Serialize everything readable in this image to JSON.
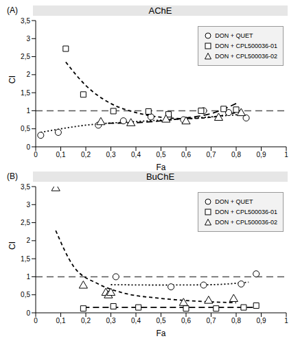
{
  "chart_data": [
    {
      "type": "scatter",
      "title": "AChE",
      "label": "(A)",
      "x_label": "Fa",
      "y_label": "CI",
      "xlim": [
        0,
        1
      ],
      "ylim": [
        0,
        3.5
      ],
      "xticks": [
        0,
        {
          "value": 0.1,
          "label": "0,1"
        },
        {
          "value": 0.2,
          "label": "0,2"
        },
        {
          "value": 0.3,
          "label": "0,3"
        },
        {
          "value": 0.4,
          "label": "0,4"
        },
        {
          "value": 0.5,
          "label": "0,5"
        },
        {
          "value": 0.6,
          "label": "0,6"
        },
        {
          "value": 0.7,
          "label": "0,7"
        },
        {
          "value": 0.8,
          "label": "0,8"
        },
        {
          "value": 0.9,
          "label": "0,9"
        },
        1
      ],
      "yticks": [
        0,
        {
          "value": 0.5,
          "label": "0,5"
        },
        1,
        {
          "value": 1.5,
          "label": "1,5"
        },
        2,
        {
          "value": 2.5,
          "label": "2,5"
        },
        3,
        {
          "value": 3.5,
          "label": "3,5"
        }
      ],
      "reference_line": 1,
      "legend": "upper right",
      "series": [
        {
          "name": "DON + QUET",
          "color": "#000000",
          "marker": "circle",
          "line_style": "dotted",
          "x": [
            0.02,
            0.09,
            0.25,
            0.35,
            0.46,
            0.53,
            0.59,
            0.67,
            0.77,
            0.84
          ],
          "values": [
            0.32,
            0.4,
            0.6,
            0.72,
            0.83,
            0.84,
            0.75,
            1.0,
            0.95,
            0.8
          ],
          "trend": {
            "x": [
              0.02,
              0.2,
              0.4,
              0.6,
              0.82
            ],
            "values": [
              0.4,
              0.6,
              0.7,
              0.78,
              0.9
            ]
          }
        },
        {
          "name": "DON + CPL500036-01",
          "color": "#000000",
          "marker": "square",
          "line_style": "dashed",
          "x": [
            0.12,
            0.19,
            0.31,
            0.45,
            0.53,
            0.66,
            0.75,
            0.8
          ],
          "values": [
            2.72,
            1.45,
            0.99,
            0.98,
            0.9,
            1.0,
            1.05,
            1.03
          ],
          "trend": {
            "x": [
              0.12,
              0.2,
              0.3,
              0.4,
              0.5,
              0.6,
              0.7,
              0.8
            ],
            "values": [
              2.35,
              1.7,
              1.2,
              0.95,
              0.82,
              0.78,
              0.82,
              0.95
            ]
          }
        },
        {
          "name": "DON + CPL500036-02",
          "color": "#000000",
          "marker": "triangle",
          "line_style": "long_dashed",
          "x": [
            0.26,
            0.38,
            0.52,
            0.6,
            0.73,
            0.82
          ],
          "values": [
            0.68,
            0.65,
            0.75,
            0.7,
            0.8,
            0.93
          ],
          "trend": {
            "x": [
              0.25,
              0.4,
              0.5,
              0.6,
              0.7,
              0.8
            ],
            "values": [
              0.65,
              0.67,
              0.72,
              0.8,
              0.92,
              1.2
            ]
          }
        }
      ]
    },
    {
      "type": "scatter",
      "title": "BuChE",
      "label": "(B)",
      "x_label": "Fa",
      "y_label": "CI",
      "xlim": [
        0,
        1
      ],
      "ylim": [
        0,
        3.5
      ],
      "xticks": [
        0,
        {
          "value": 0.1,
          "label": "0,1"
        },
        {
          "value": 0.2,
          "label": "0,2"
        },
        {
          "value": 0.3,
          "label": "0,3"
        },
        {
          "value": 0.4,
          "label": "0,4"
        },
        {
          "value": 0.5,
          "label": "0,5"
        },
        {
          "value": 0.6,
          "label": "0,6"
        },
        {
          "value": 0.7,
          "label": "0,7"
        },
        {
          "value": 0.8,
          "label": "0,8"
        },
        {
          "value": 0.9,
          "label": "0,9"
        },
        1
      ],
      "yticks": [
        0,
        {
          "value": 0.5,
          "label": "0,5"
        },
        1,
        {
          "value": 1.5,
          "label": "1,5"
        },
        2,
        {
          "value": 2.5,
          "label": "2,5"
        },
        3,
        {
          "value": 3.5,
          "label": "3,5"
        }
      ],
      "reference_line": 1,
      "legend": "upper right",
      "series": [
        {
          "name": "DON + QUET",
          "color": "#000000",
          "marker": "circle",
          "line_style": "dotted",
          "x": [
            0.32,
            0.54,
            0.67,
            0.82,
            0.88
          ],
          "values": [
            1.0,
            0.72,
            0.77,
            0.8,
            1.08
          ],
          "trend": {
            "x": [
              0.3,
              0.5,
              0.7,
              0.85
            ],
            "values": [
              0.78,
              0.77,
              0.78,
              0.85
            ]
          }
        },
        {
          "name": "DON + CPL500036-01",
          "color": "#000000",
          "marker": "square",
          "line_style": "long_dashed",
          "x": [
            0.19,
            0.31,
            0.41,
            0.6,
            0.72,
            0.83,
            0.88
          ],
          "values": [
            0.12,
            0.18,
            0.15,
            0.12,
            0.12,
            0.15,
            0.2
          ],
          "trend": {
            "x": [
              0.19,
              0.5,
              0.88
            ],
            "values": [
              0.15,
              0.15,
              0.15
            ]
          }
        },
        {
          "name": "DON + CPL500036-02",
          "color": "#000000",
          "marker": "triangle",
          "line_style": "dashed",
          "x": [
            0.08,
            0.19,
            0.28,
            0.29,
            0.3,
            0.59,
            0.69,
            0.79
          ],
          "values": [
            3.45,
            0.75,
            0.55,
            0.48,
            0.55,
            0.27,
            0.33,
            0.38
          ],
          "trend": {
            "x": [
              0.08,
              0.15,
              0.25,
              0.35,
              0.5,
              0.65,
              0.8
            ],
            "values": [
              2.28,
              1.3,
              0.8,
              0.55,
              0.4,
              0.32,
              0.28
            ]
          }
        }
      ]
    }
  ]
}
